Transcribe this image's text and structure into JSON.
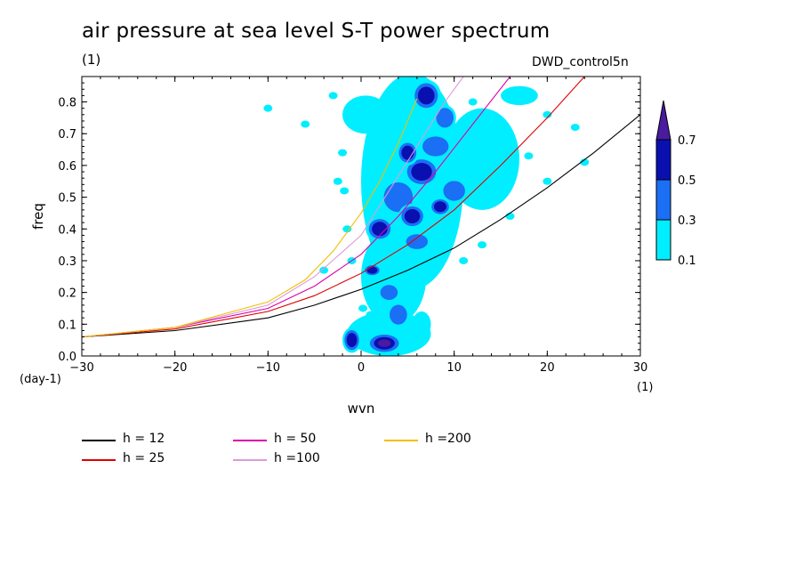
{
  "title": "air pressure at sea level S-T power spectrum",
  "units_label": "(1)",
  "experiment": "DWD_control5n",
  "chart_data": {
    "type": "contour",
    "xlabel": "wvn",
    "ylabel": "freq",
    "x_unit": "(1)",
    "y_unit": "(day-1)",
    "xlim": [
      -30,
      30
    ],
    "ylim": [
      0,
      0.88
    ],
    "xticks": [
      -30,
      -20,
      -10,
      0,
      10,
      20,
      30
    ],
    "xtick_labels": [
      "-30",
      "-20",
      "-10",
      "0",
      "10",
      "20",
      "30"
    ],
    "yticks": [
      0,
      0.1,
      0.2,
      0.3,
      0.4,
      0.5,
      0.6,
      0.7,
      0.8
    ],
    "ytick_labels": [
      "0.0",
      "0.1",
      "0.2",
      "0.3",
      "0.4",
      "0.5",
      "0.6",
      "0.7",
      "0.8"
    ],
    "colorbar": {
      "levels": [
        "0.1",
        "0.3",
        "0.5",
        "0.7"
      ],
      "colors": [
        "#00eeff",
        "#1b6ff5",
        "#0a10b0",
        "#4a1aa0"
      ]
    },
    "series": [
      {
        "name": "h = 12",
        "color": "#000000",
        "x": [
          -30,
          -20,
          -10,
          -5,
          0,
          5,
          10,
          15,
          20,
          25,
          30
        ],
        "y": [
          0.06,
          0.08,
          0.12,
          0.16,
          0.21,
          0.27,
          0.34,
          0.43,
          0.53,
          0.64,
          0.76
        ]
      },
      {
        "name": "h = 25",
        "color": "#dd0000",
        "x": [
          -30,
          -20,
          -10,
          -5,
          0,
          5,
          10,
          15,
          20,
          24
        ],
        "y": [
          0.06,
          0.085,
          0.14,
          0.19,
          0.26,
          0.35,
          0.46,
          0.6,
          0.75,
          0.88
        ]
      },
      {
        "name": "h = 50",
        "color": "#dd00aa",
        "x": [
          -30,
          -20,
          -10,
          -5,
          0,
          4,
          8,
          12,
          16
        ],
        "y": [
          0.06,
          0.09,
          0.15,
          0.22,
          0.32,
          0.44,
          0.58,
          0.73,
          0.88
        ]
      },
      {
        "name": "h =100",
        "color": "#dd99dd",
        "x": [
          -30,
          -20,
          -10,
          -5,
          0,
          3,
          6,
          9,
          11
        ],
        "y": [
          0.06,
          0.09,
          0.16,
          0.25,
          0.38,
          0.52,
          0.66,
          0.8,
          0.88
        ]
      },
      {
        "name": "h =200",
        "color": "#f0c000",
        "x": [
          -30,
          -20,
          -10,
          -6,
          -3,
          0,
          2,
          4,
          6
        ],
        "y": [
          0.06,
          0.09,
          0.17,
          0.24,
          0.33,
          0.45,
          0.55,
          0.67,
          0.81
        ]
      }
    ],
    "blobs": [
      {
        "x": 2.5,
        "y": 0.04,
        "rx": 2.0,
        "ry": 0.035,
        "level": 3
      },
      {
        "x": -1.0,
        "y": 0.05,
        "rx": 1.0,
        "ry": 0.04,
        "level": 2
      },
      {
        "x": 4.0,
        "y": 0.13,
        "rx": 1.2,
        "ry": 0.04,
        "level": 1
      },
      {
        "x": 6.5,
        "y": 0.1,
        "rx": 1.0,
        "ry": 0.04,
        "level": 0
      },
      {
        "x": 1.2,
        "y": 0.27,
        "rx": 1.0,
        "ry": 0.02,
        "level": 2
      },
      {
        "x": 2.0,
        "y": 0.4,
        "rx": 1.5,
        "ry": 0.04,
        "level": 2
      },
      {
        "x": 4.0,
        "y": 0.5,
        "rx": 2.0,
        "ry": 0.06,
        "level": 1
      },
      {
        "x": 5.5,
        "y": 0.44,
        "rx": 1.5,
        "ry": 0.04,
        "level": 2
      },
      {
        "x": 6.5,
        "y": 0.58,
        "rx": 2.0,
        "ry": 0.05,
        "level": 2
      },
      {
        "x": 8.0,
        "y": 0.66,
        "rx": 1.8,
        "ry": 0.04,
        "level": 1
      },
      {
        "x": 7.0,
        "y": 0.82,
        "rx": 1.6,
        "ry": 0.05,
        "level": 2
      },
      {
        "x": 9.0,
        "y": 0.75,
        "rx": 1.2,
        "ry": 0.04,
        "level": 1
      },
      {
        "x": 10.0,
        "y": 0.52,
        "rx": 1.5,
        "ry": 0.04,
        "level": 1
      },
      {
        "x": 6.0,
        "y": 0.36,
        "rx": 1.5,
        "ry": 0.03,
        "level": 1
      },
      {
        "x": 3.0,
        "y": 0.2,
        "rx": 1.2,
        "ry": 0.03,
        "level": 1
      },
      {
        "x": 8.5,
        "y": 0.47,
        "rx": 1.2,
        "ry": 0.03,
        "level": 2
      },
      {
        "x": 5.0,
        "y": 0.64,
        "rx": 1.2,
        "ry": 0.04,
        "level": 2
      }
    ],
    "regions": [
      {
        "x": 5.5,
        "y": 0.55,
        "rx": 5.5,
        "ry": 0.34
      },
      {
        "x": 3.5,
        "y": 0.25,
        "rx": 3.5,
        "ry": 0.15
      },
      {
        "x": 3.0,
        "y": 0.07,
        "rx": 4.5,
        "ry": 0.07
      },
      {
        "x": 13.0,
        "y": 0.62,
        "rx": 4.0,
        "ry": 0.16
      },
      {
        "x": 0.5,
        "y": 0.76,
        "rx": 2.5,
        "ry": 0.06
      },
      {
        "x": 17.0,
        "y": 0.82,
        "rx": 2.0,
        "ry": 0.03
      }
    ],
    "specks": [
      [
        -6,
        0.73
      ],
      [
        -10,
        0.78
      ],
      [
        -2,
        0.64
      ],
      [
        -2.5,
        0.55
      ],
      [
        -1.8,
        0.52
      ],
      [
        0.5,
        0.56
      ],
      [
        -3,
        0.82
      ],
      [
        -1,
        0.3
      ],
      [
        16,
        0.68
      ],
      [
        20,
        0.76
      ],
      [
        23,
        0.72
      ],
      [
        20,
        0.55
      ],
      [
        11,
        0.3
      ],
      [
        13,
        0.35
      ],
      [
        16,
        0.44
      ],
      [
        24,
        0.61
      ],
      [
        -4,
        0.27
      ],
      [
        -1.5,
        0.4
      ],
      [
        0.2,
        0.15
      ],
      [
        1,
        0.13
      ],
      [
        12,
        0.8
      ],
      [
        18,
        0.63
      ],
      [
        14,
        0.52
      ]
    ]
  },
  "legend": [
    {
      "label": "h = 12",
      "color": "#000000"
    },
    {
      "label": "h = 25",
      "color": "#dd0000"
    },
    {
      "label": "h = 50",
      "color": "#dd00aa"
    },
    {
      "label": "h =100",
      "color": "#dd99dd"
    },
    {
      "label": "h =200",
      "color": "#f0c000"
    }
  ]
}
